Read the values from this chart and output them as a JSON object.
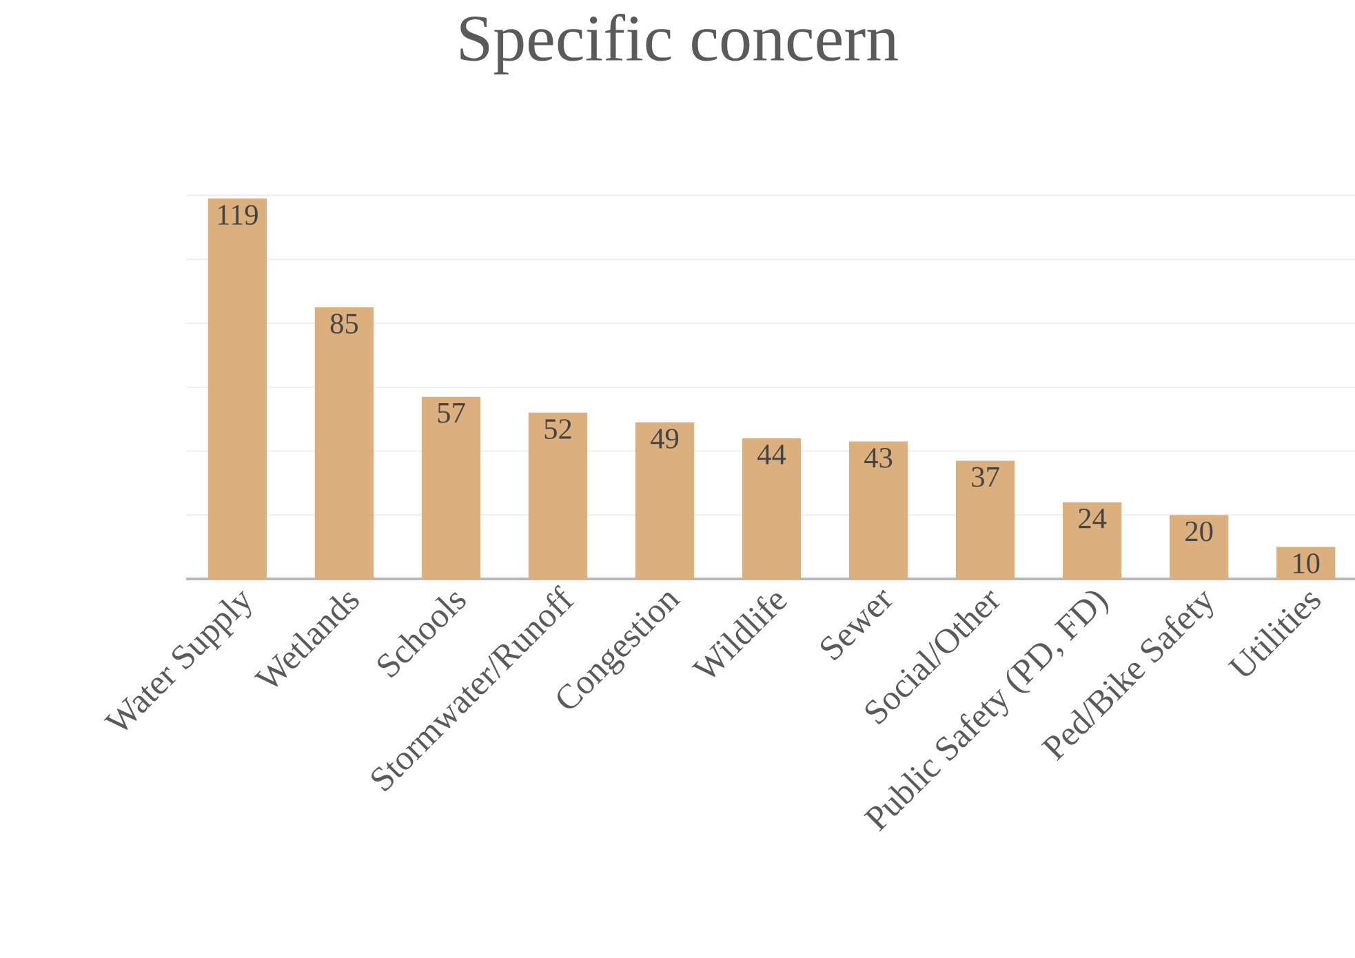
{
  "chart_data": {
    "type": "bar",
    "title": "Specific concern",
    "categories": [
      "Water Supply",
      "Wetlands",
      "Schools",
      "Stormwater/Runoff",
      "Congestion",
      "Wildlife",
      "Sewer",
      "Social/Other",
      "Public Safety (PD, FD)",
      "Ped/Bike Safety",
      "Utilities"
    ],
    "values": [
      119,
      85,
      57,
      52,
      49,
      44,
      43,
      37,
      24,
      20,
      10
    ],
    "color": "#dcb07e",
    "data_labels": true,
    "grid": "y",
    "tick_labels": "x"
  }
}
